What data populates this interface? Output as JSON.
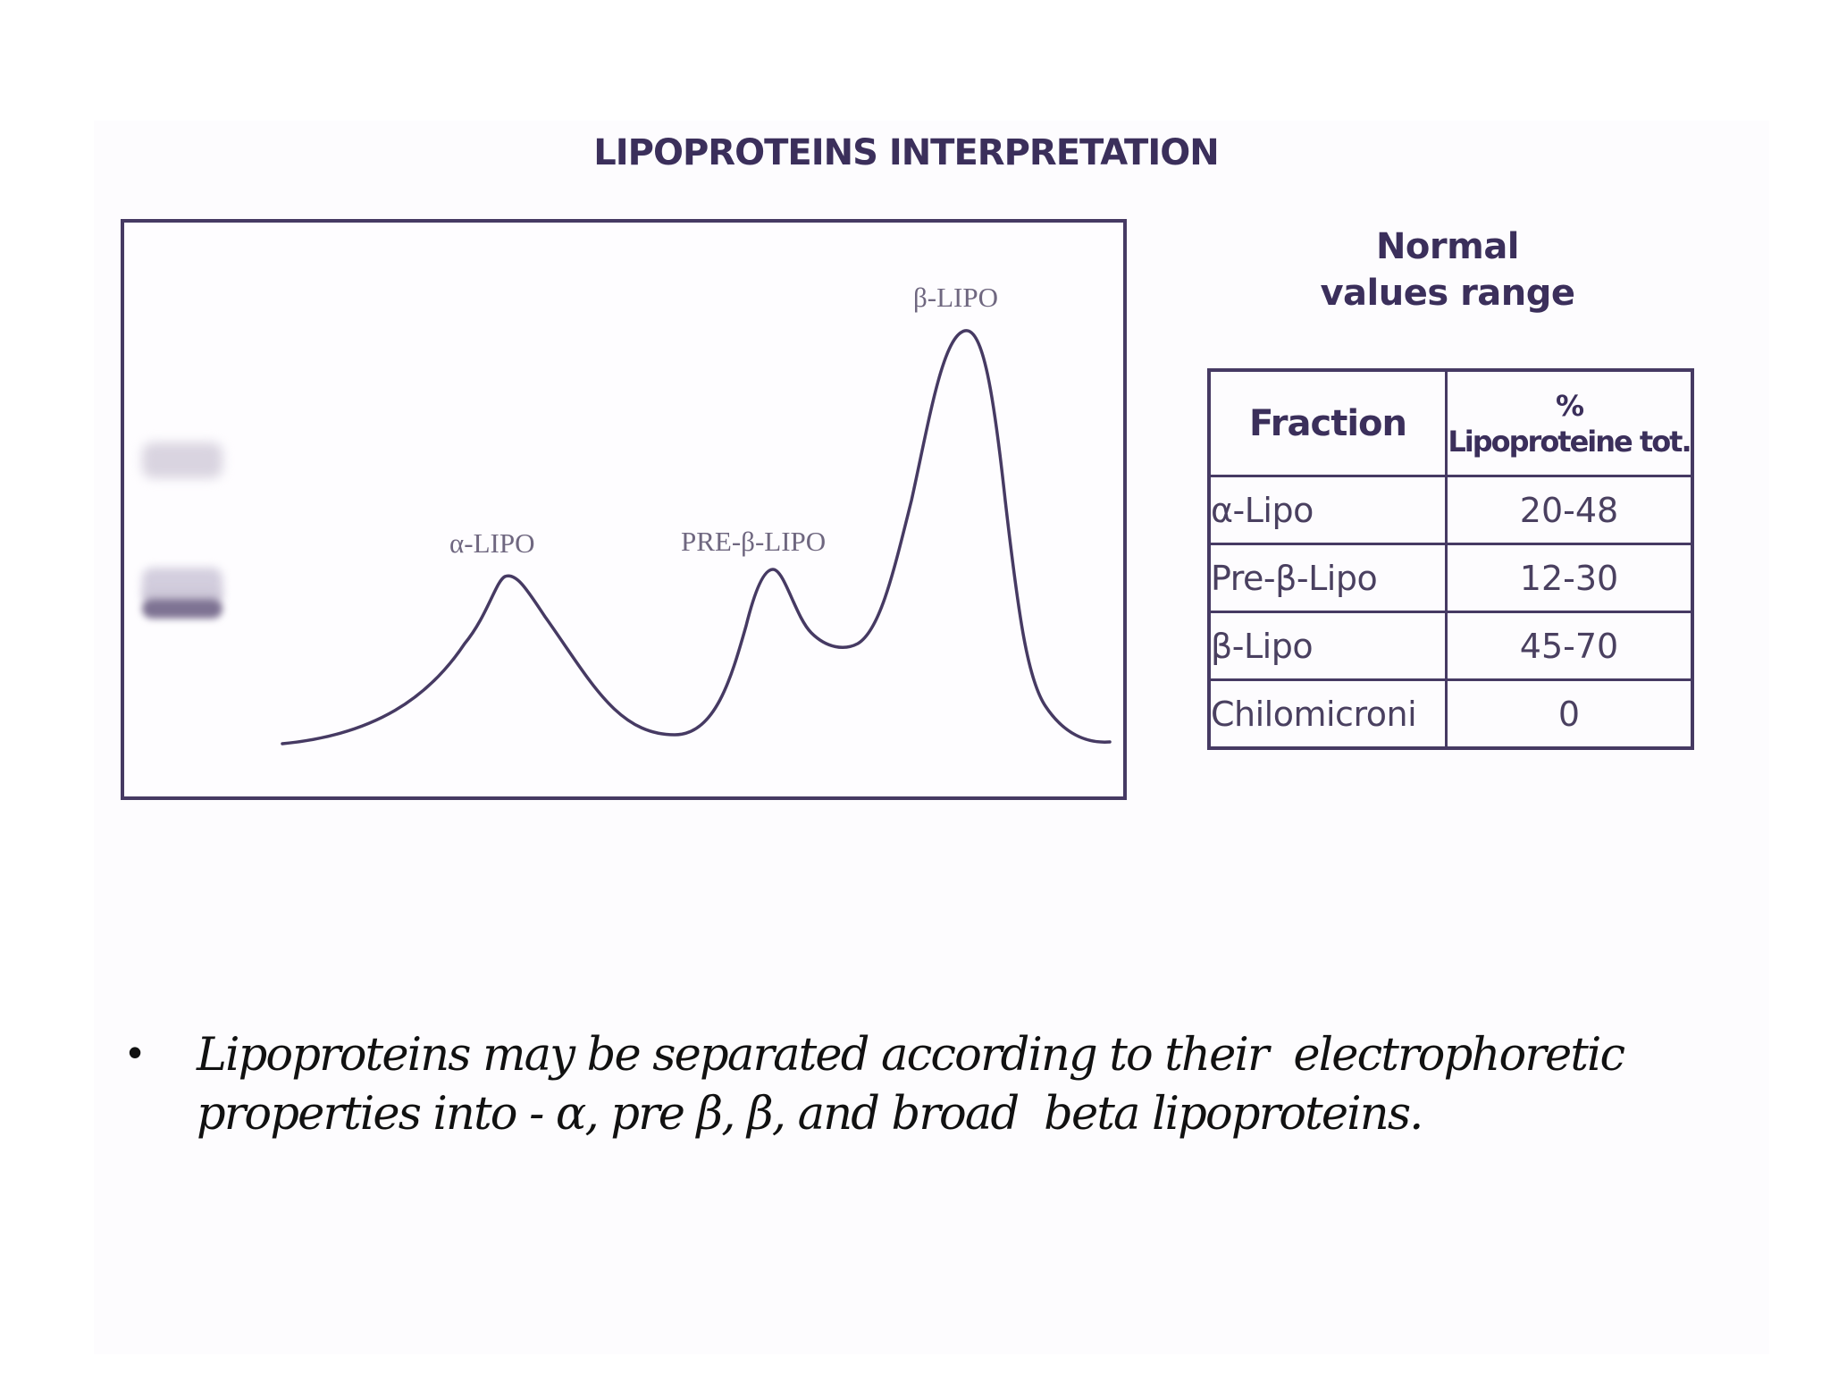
{
  "figure": {
    "title": "LIPOPROTEINS INTERPRETATION",
    "peaks": {
      "alpha": "α-LIPO",
      "pre_beta": "PRE-β-LIPO",
      "beta": "β-LIPO"
    }
  },
  "normal_values": {
    "heading_line1": "Normal",
    "heading_line2": "values range",
    "table": {
      "header_fraction": "Fraction",
      "header_percent_symbol": "%",
      "header_percent_label": "Lipoproteine tot.",
      "rows": [
        {
          "fraction": "α-Lipo",
          "value": "20-48"
        },
        {
          "fraction": "Pre-β-Lipo",
          "value": "12-30"
        },
        {
          "fraction": "β-Lipo",
          "value": "45-70"
        },
        {
          "fraction": "Chilomicroni",
          "value": "0"
        }
      ]
    }
  },
  "bullet": {
    "symbol": "•",
    "line1": "Lipoproteins may be separated according to their  electrophoretic",
    "line2": "properties into - α, pre β, β, and broad  beta lipoproteins."
  },
  "colors": {
    "frame": "#463a63",
    "curve": "#463a63",
    "title": "#3b2f5b"
  }
}
